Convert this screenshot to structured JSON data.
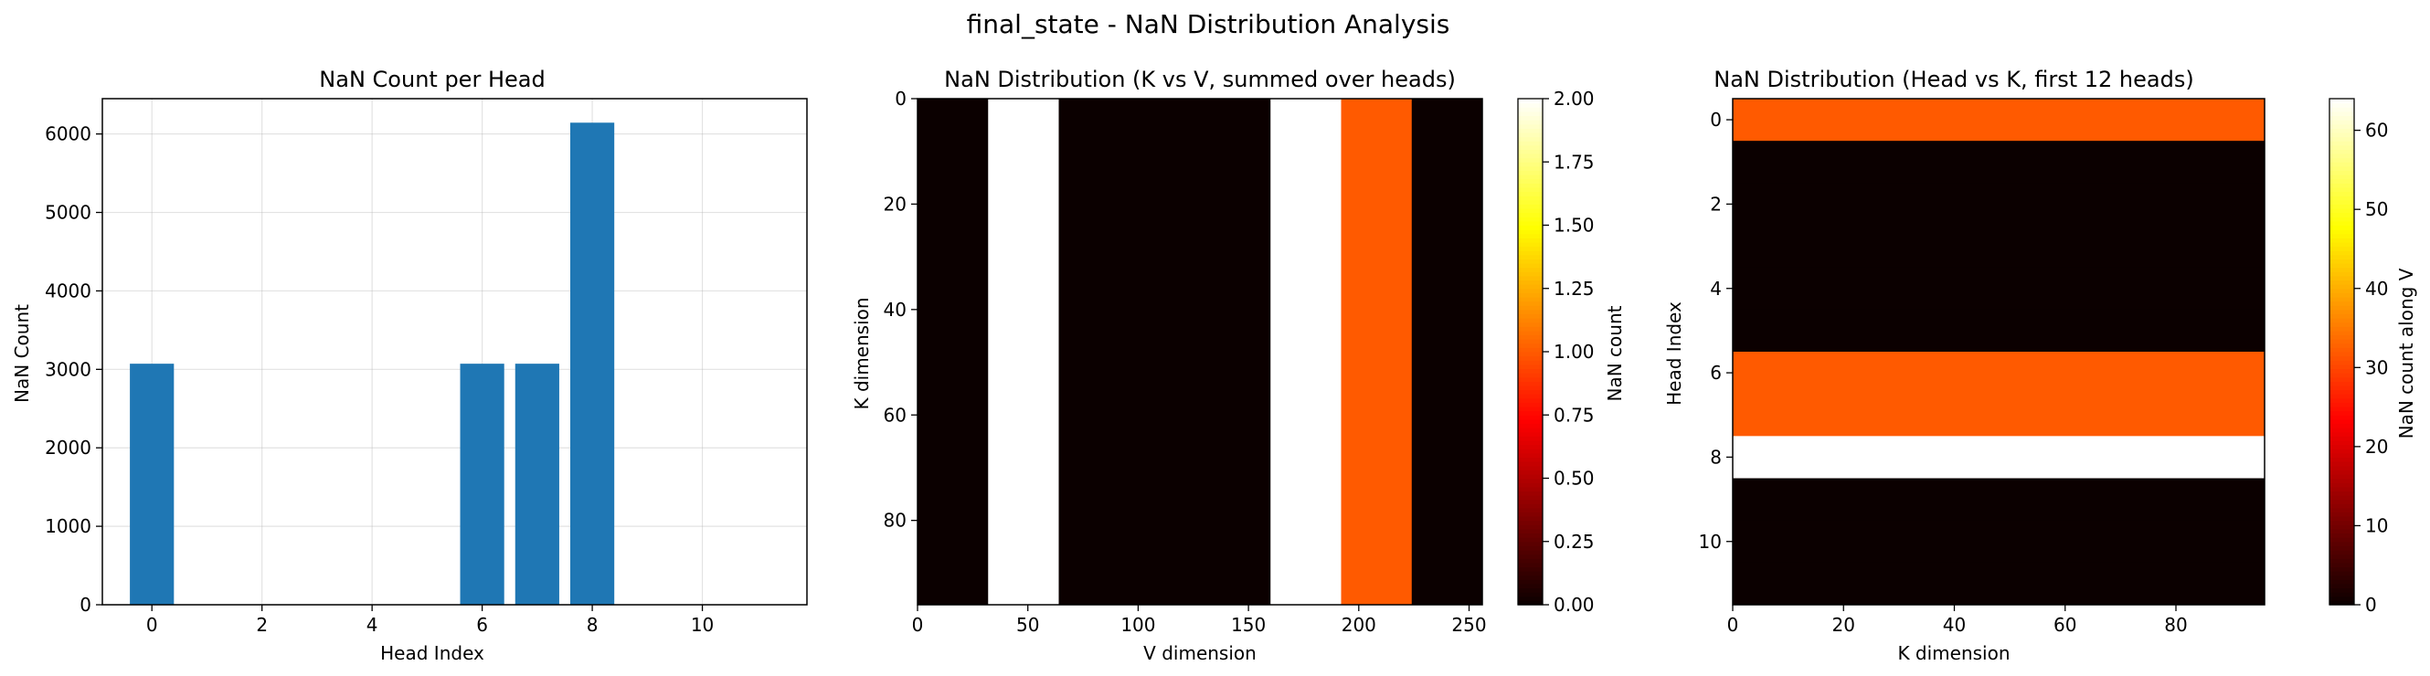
{
  "figure": {
    "suptitle": "final_state - NaN Distribution Analysis"
  },
  "chart_data": [
    {
      "type": "bar",
      "title": "NaN Count per Head",
      "xlabel": "Head Index",
      "ylabel": "NaN Count",
      "xlim": [
        -0.9,
        11.9
      ],
      "ylim": [
        0,
        6450
      ],
      "xticks": [
        0,
        2,
        4,
        6,
        8,
        10
      ],
      "yticks": [
        0,
        1000,
        2000,
        3000,
        4000,
        5000,
        6000
      ],
      "grid": true,
      "color": "#1f77b4",
      "categories": [
        0,
        1,
        2,
        3,
        4,
        5,
        6,
        7,
        8,
        9,
        10,
        11
      ],
      "values": [
        3072,
        0,
        0,
        0,
        0,
        0,
        3072,
        3072,
        6144,
        0,
        0,
        0
      ]
    },
    {
      "type": "heatmap",
      "title": "NaN Distribution (K vs V, summed over heads)",
      "xlabel": "V dimension",
      "ylabel": "K dimension",
      "colormap": "hot",
      "xlim": [
        0,
        256
      ],
      "ylim": [
        96,
        0
      ],
      "xticks": [
        0,
        50,
        100,
        150,
        200,
        250
      ],
      "yticks": [
        0,
        20,
        40,
        60,
        80
      ],
      "colorbar": {
        "label": "NaN count",
        "range": [
          0,
          2
        ],
        "ticks": [
          "0.00",
          "0.25",
          "0.50",
          "0.75",
          "1.00",
          "1.25",
          "1.50",
          "1.75",
          "2.00"
        ]
      },
      "column_bands": [
        {
          "v_start": 0,
          "v_end": 32,
          "value": 0
        },
        {
          "v_start": 32,
          "v_end": 64,
          "value": 2
        },
        {
          "v_start": 64,
          "v_end": 160,
          "value": 0
        },
        {
          "v_start": 160,
          "v_end": 192,
          "value": 2
        },
        {
          "v_start": 192,
          "v_end": 224,
          "value": 1
        },
        {
          "v_start": 224,
          "v_end": 256,
          "value": 0
        }
      ]
    },
    {
      "type": "heatmap",
      "title": "NaN Distribution (Head vs K, first 12 heads)",
      "xlabel": "K dimension",
      "ylabel": "Head Index",
      "colormap": "hot",
      "xlim": [
        0,
        96
      ],
      "ylim": [
        11.5,
        -0.5
      ],
      "xticks": [
        0,
        20,
        40,
        60,
        80
      ],
      "yticks": [
        0,
        2,
        4,
        6,
        8,
        10
      ],
      "colorbar": {
        "label": "NaN count along V",
        "range": [
          0,
          64
        ],
        "ticks": [
          "0",
          "10",
          "20",
          "30",
          "40",
          "50",
          "60"
        ]
      },
      "row_values": [
        32,
        0,
        0,
        0,
        0,
        0,
        32,
        32,
        64,
        0,
        0,
        0
      ]
    }
  ]
}
